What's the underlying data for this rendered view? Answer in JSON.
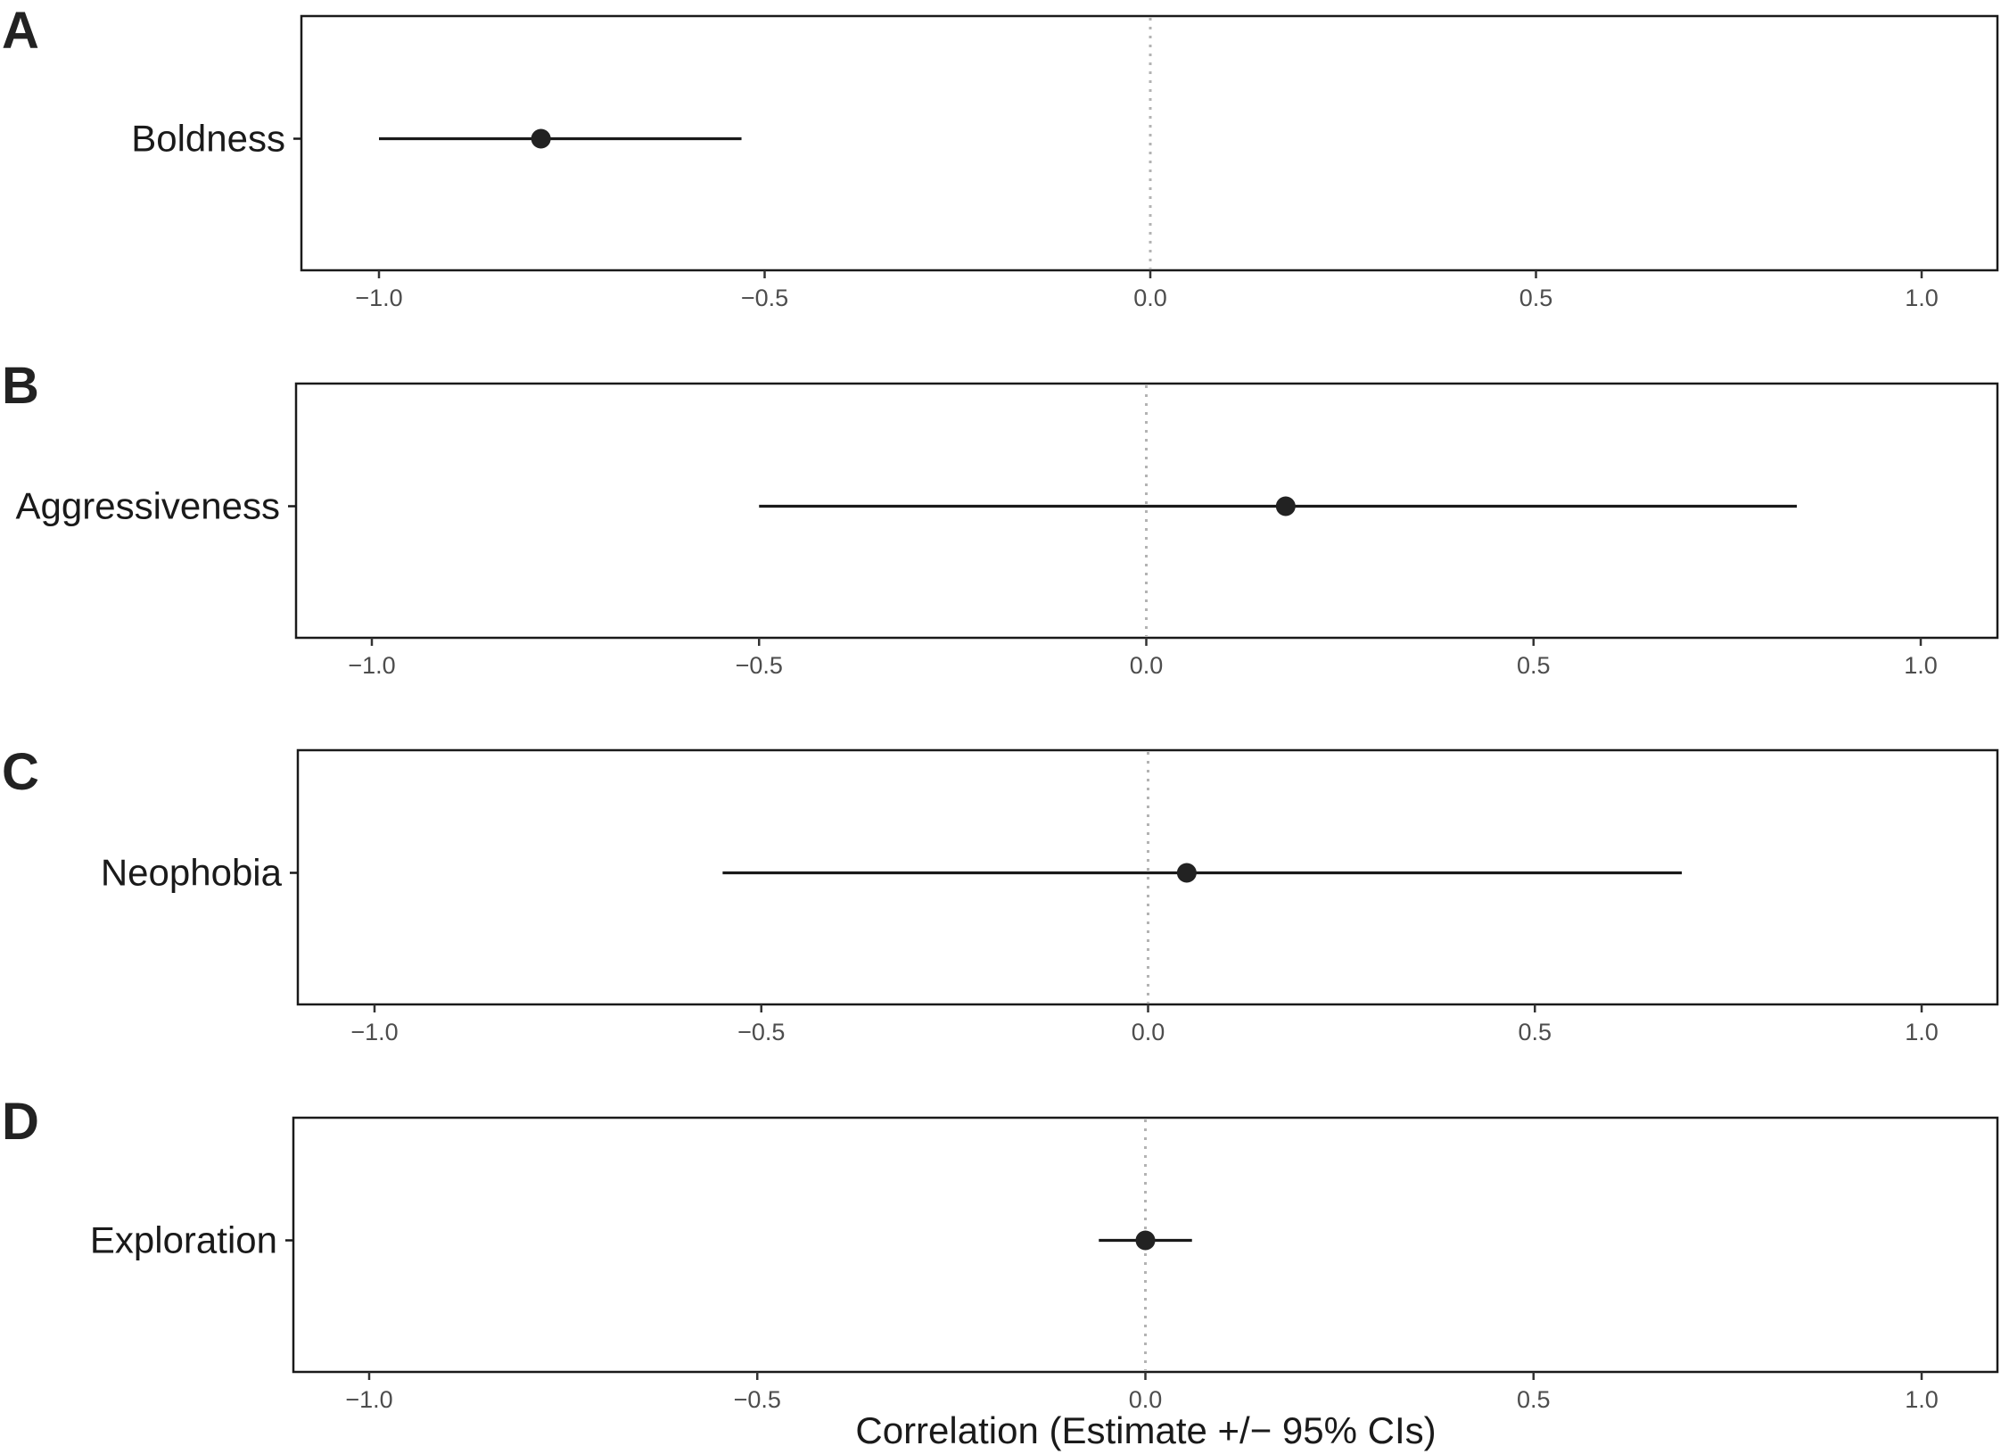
{
  "chart_data": {
    "type": "forest",
    "xlabel": "Correlation (Estimate +/− 95% CIs)",
    "xlim": [
      -1.1,
      1.1
    ],
    "x_ticks": [
      -1.0,
      -0.5,
      0.0,
      0.5,
      1.0
    ],
    "x_tick_labels": [
      "−1.0",
      "−0.5",
      "0.0",
      "0.5",
      "1.0"
    ],
    "reference_line": 0.0,
    "grid": false,
    "colors": {
      "point": "#222222",
      "line": "#1a1a1a",
      "reference": "#b3b3b3",
      "frame": "#1a1a1a"
    },
    "panels": [
      {
        "letter": "A",
        "trait": "Boldness",
        "estimate": -0.79,
        "ci_low": -1.0,
        "ci_high": -0.53
      },
      {
        "letter": "B",
        "trait": "Aggressiveness",
        "estimate": 0.18,
        "ci_low": -0.5,
        "ci_high": 0.84
      },
      {
        "letter": "C",
        "trait": "Neophobia",
        "estimate": 0.05,
        "ci_low": -0.55,
        "ci_high": 0.69
      },
      {
        "letter": "D",
        "trait": "Exploration",
        "estimate": 0.0,
        "ci_low": -0.06,
        "ci_high": 0.06
      }
    ]
  }
}
